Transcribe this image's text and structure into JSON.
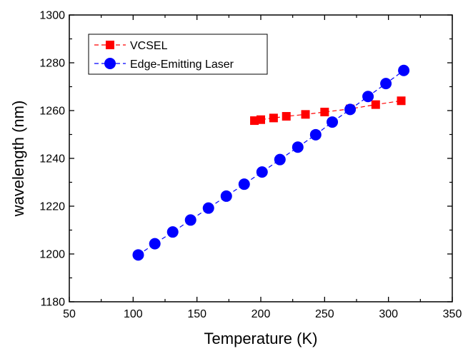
{
  "chart_data": {
    "type": "line",
    "title": "",
    "xlabel": "Temperature (K)",
    "ylabel": "wavelength (nm)",
    "xlim": [
      50,
      350
    ],
    "ylim": [
      1180,
      1300
    ],
    "xticks": [
      50,
      100,
      150,
      200,
      250,
      300,
      350
    ],
    "yticks": [
      1180,
      1200,
      1220,
      1240,
      1260,
      1280,
      1300
    ],
    "grid": false,
    "legend": "top-left",
    "series": [
      {
        "name": "VCSEL",
        "marker": "square",
        "color": "#ff0000",
        "line_color": "#ff0000",
        "line_style": "dashed",
        "x": [
          195,
          200,
          210,
          220,
          235,
          250,
          270,
          290,
          310
        ],
        "y": [
          1255.8,
          1256.2,
          1256.9,
          1257.6,
          1258.4,
          1259.4,
          1260.7,
          1262.5,
          1264.1
        ]
      },
      {
        "name": "Edge-Emitting Laser",
        "marker": "circle",
        "color": "#0000ff",
        "line_color": "#0000ff",
        "line_style": "dashed",
        "x": [
          104,
          117,
          131,
          145,
          159,
          173,
          187,
          201,
          215,
          229,
          243,
          256,
          270,
          284,
          298,
          312
        ],
        "y": [
          1199.6,
          1204.3,
          1209.2,
          1214.2,
          1219.2,
          1224.2,
          1229.2,
          1234.3,
          1239.5,
          1244.7,
          1249.9,
          1255.2,
          1260.5,
          1265.9,
          1271.3,
          1276.8
        ]
      }
    ]
  }
}
